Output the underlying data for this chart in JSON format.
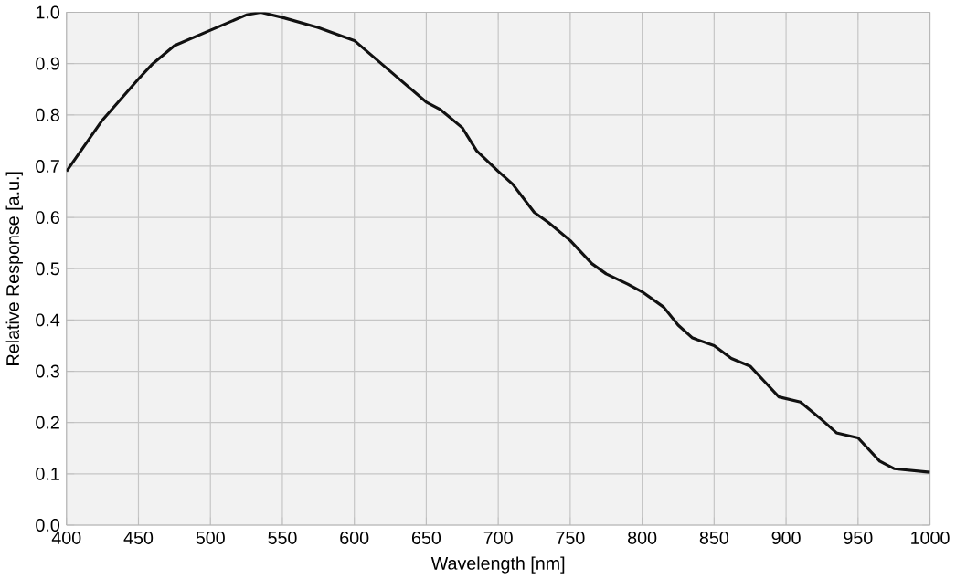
{
  "chart_data": {
    "type": "line",
    "xlabel": "Wavelength  [nm]",
    "ylabel": "Relative Response [a.u.]",
    "x": [
      400,
      425,
      450,
      460,
      475,
      500,
      525,
      535,
      550,
      575,
      600,
      625,
      650,
      660,
      675,
      685,
      700,
      710,
      725,
      735,
      750,
      765,
      775,
      790,
      800,
      815,
      825,
      835,
      850,
      862,
      875,
      885,
      895,
      910,
      925,
      935,
      950,
      965,
      975,
      1000
    ],
    "series": [
      {
        "color": "#111111",
        "values": [
          0.69,
          0.79,
          0.87,
          0.9,
          0.935,
          0.965,
          0.995,
          1.0,
          0.99,
          0.97,
          0.945,
          0.885,
          0.825,
          0.81,
          0.775,
          0.73,
          0.69,
          0.665,
          0.61,
          0.59,
          0.555,
          0.51,
          0.49,
          0.47,
          0.455,
          0.425,
          0.39,
          0.365,
          0.35,
          0.325,
          0.31,
          0.28,
          0.25,
          0.24,
          0.205,
          0.18,
          0.17,
          0.125,
          0.11,
          0.103
        ]
      }
    ],
    "xlim": [
      400,
      1000
    ],
    "ylim": [
      0,
      1.0
    ],
    "xticks": [
      400,
      450,
      500,
      550,
      600,
      650,
      700,
      750,
      800,
      850,
      900,
      950,
      1000
    ],
    "yticks": [
      {
        "value": 0,
        "label": "0.0"
      },
      {
        "value": 0.1,
        "label": "0.1"
      },
      {
        "value": 0.2,
        "label": "0.2"
      },
      {
        "value": 0.3,
        "label": "0.3"
      },
      {
        "value": 0.4,
        "label": "0.4"
      },
      {
        "value": 0.5,
        "label": "0.5"
      },
      {
        "value": 0.6,
        "label": "0.6"
      },
      {
        "value": 0.7,
        "label": "0.7"
      },
      {
        "value": 0.8,
        "label": "0.8"
      },
      {
        "value": 0.9,
        "label": "0.9"
      },
      {
        "value": 1.0,
        "label": "1.0"
      }
    ],
    "grid": true,
    "marker": "none",
    "line_style": "solid"
  }
}
